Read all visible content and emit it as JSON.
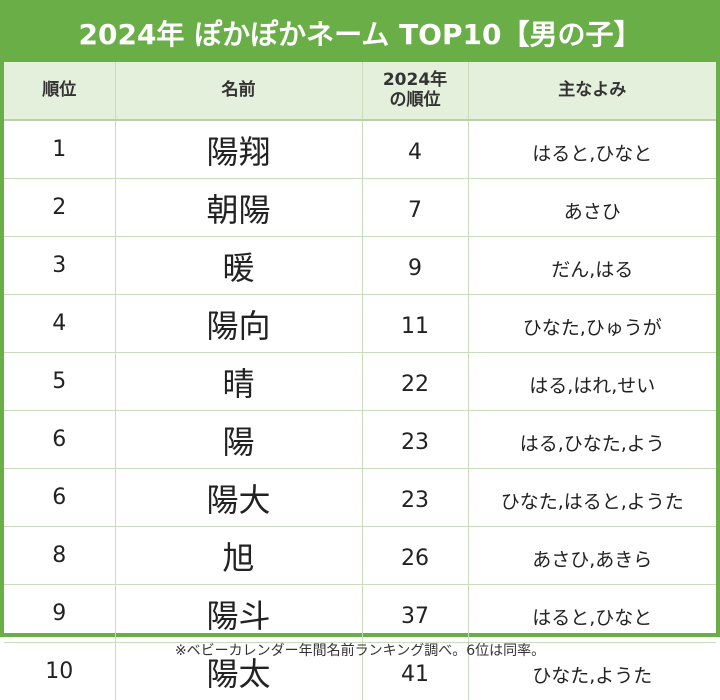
{
  "title": "2024年 ぽかぽかネーム TOP10【男の子】",
  "table": {
    "header": [
      "順位",
      "名前",
      [
        "2024年",
        "の順位"
      ],
      "主なよみ"
    ],
    "rows": [
      [
        1,
        "陽翔",
        4,
        "はると,ひなと"
      ],
      [
        2,
        "朝陽",
        7,
        "あさひ"
      ],
      [
        3,
        "暖",
        9,
        "だん,はる"
      ],
      [
        4,
        "陽向",
        11,
        "ひなた,ひゅうが"
      ],
      [
        5,
        "晴",
        22,
        "はる,はれ,せい"
      ],
      [
        6,
        "陽",
        23,
        "はる,ひなた,よう"
      ],
      [
        6,
        "陽大",
        23,
        "ひなた,はると,ようた"
      ],
      [
        8,
        "旭",
        26,
        "あさひ,あきら"
      ],
      [
        9,
        "陽斗",
        37,
        "はると,ひなと"
      ],
      [
        10,
        "陽太",
        41,
        "ひなた,ようた"
      ]
    ]
  },
  "footnote": "※ベビーカレンダー年間名前ランキング調べ。6位は同率。"
}
